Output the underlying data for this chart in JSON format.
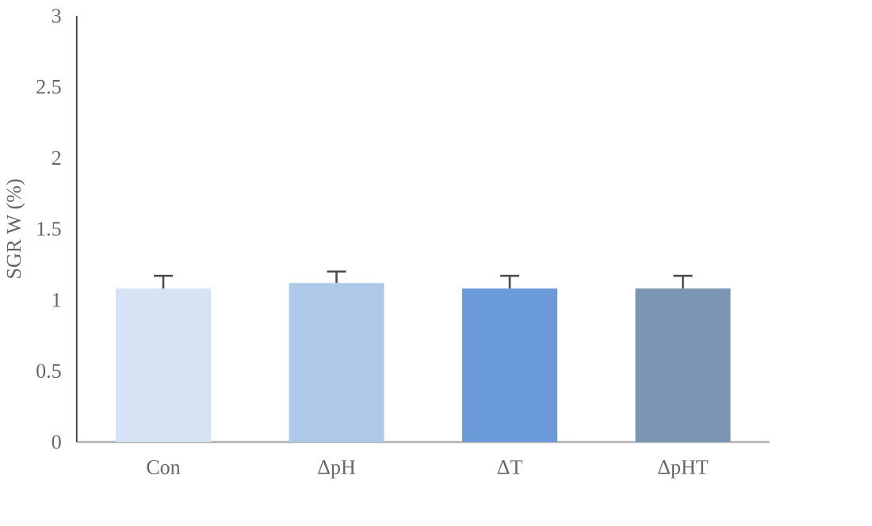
{
  "chart_data": {
    "type": "bar",
    "ylabel": "SGR W (%)",
    "categories": [
      "Con",
      "ΔpH",
      "ΔT",
      "ΔpHT"
    ],
    "values": [
      1.08,
      1.12,
      1.08,
      1.08
    ],
    "colors": [
      "#d6e3f4",
      "#aec8e9",
      "#6a9bd8",
      "#7b96b2"
    ],
    "errors": [
      [
        1.08,
        1.17
      ],
      [
        1.12,
        1.2
      ],
      [
        1.08,
        1.17
      ],
      [
        1.08,
        1.17
      ]
    ],
    "ylim": [
      0,
      3
    ],
    "yticks": [
      0,
      0.5,
      1,
      1.5,
      2,
      2.5,
      3
    ],
    "grid": false
  }
}
